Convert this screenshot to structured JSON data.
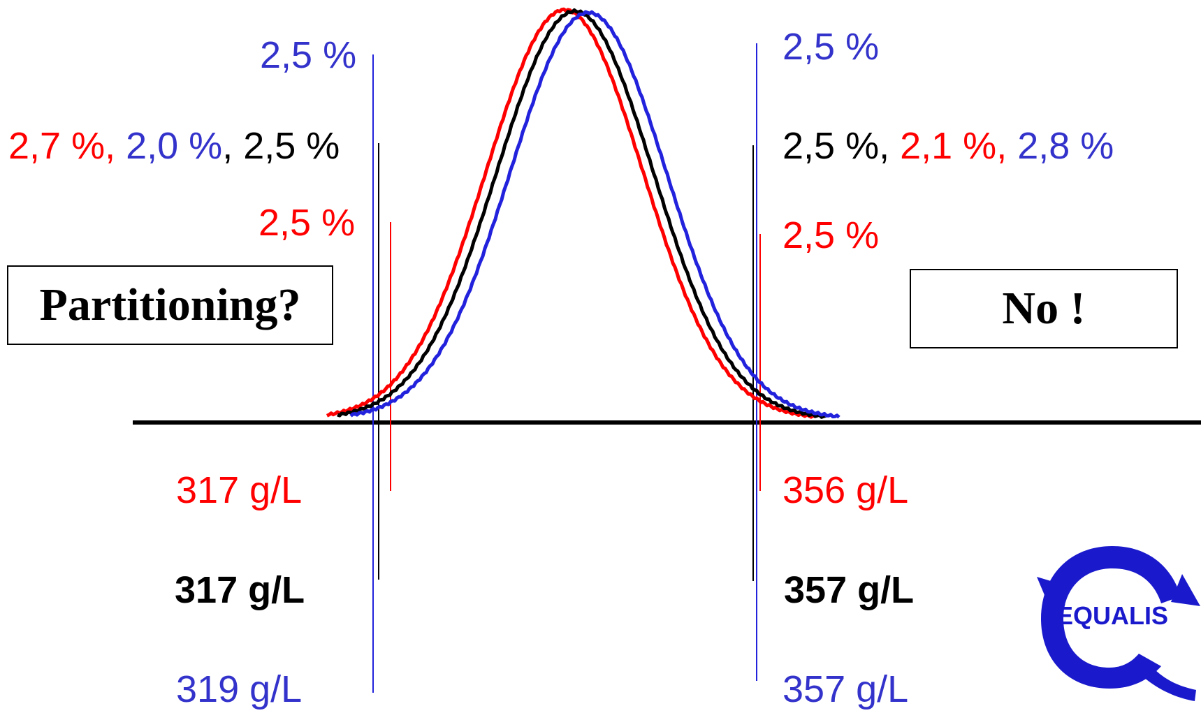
{
  "colors": {
    "red": "#ff0000",
    "black": "#000000",
    "blue": "#2222dd",
    "blue_text": "#3333cc"
  },
  "labels": {
    "left_top_pct": "2,5 %",
    "left_mid_pct_red": "2,7 %,",
    "left_mid_pct_blue": "2,0 %",
    "left_mid_pct_sep": ",",
    "left_mid_pct_black": "2,5 %",
    "left_low_pct": "2,5 %",
    "right_top_pct": "2,5 %",
    "right_mid_pct_black": "2,5 %,",
    "right_mid_pct_red": "2,1 %,",
    "right_mid_pct_blue": "2,8 %",
    "right_low_pct": "2,5 %",
    "left_val_red": "317 g/L",
    "left_val_black": "317 g/L",
    "left_val_blue": "319 g/L",
    "right_val_red": "356 g/L",
    "right_val_black": "357 g/L",
    "right_val_blue": "357 g/L"
  },
  "question_box": "Partitioning?",
  "answer_box": "No !",
  "logo_text": "EQUALIS",
  "curves": [
    {
      "name": "red",
      "color": "#ff0000",
      "peak": 808
    },
    {
      "name": "black",
      "color": "#000000",
      "peak": 823
    },
    {
      "name": "blue",
      "color": "#2222dd",
      "peak": 842
    }
  ]
}
